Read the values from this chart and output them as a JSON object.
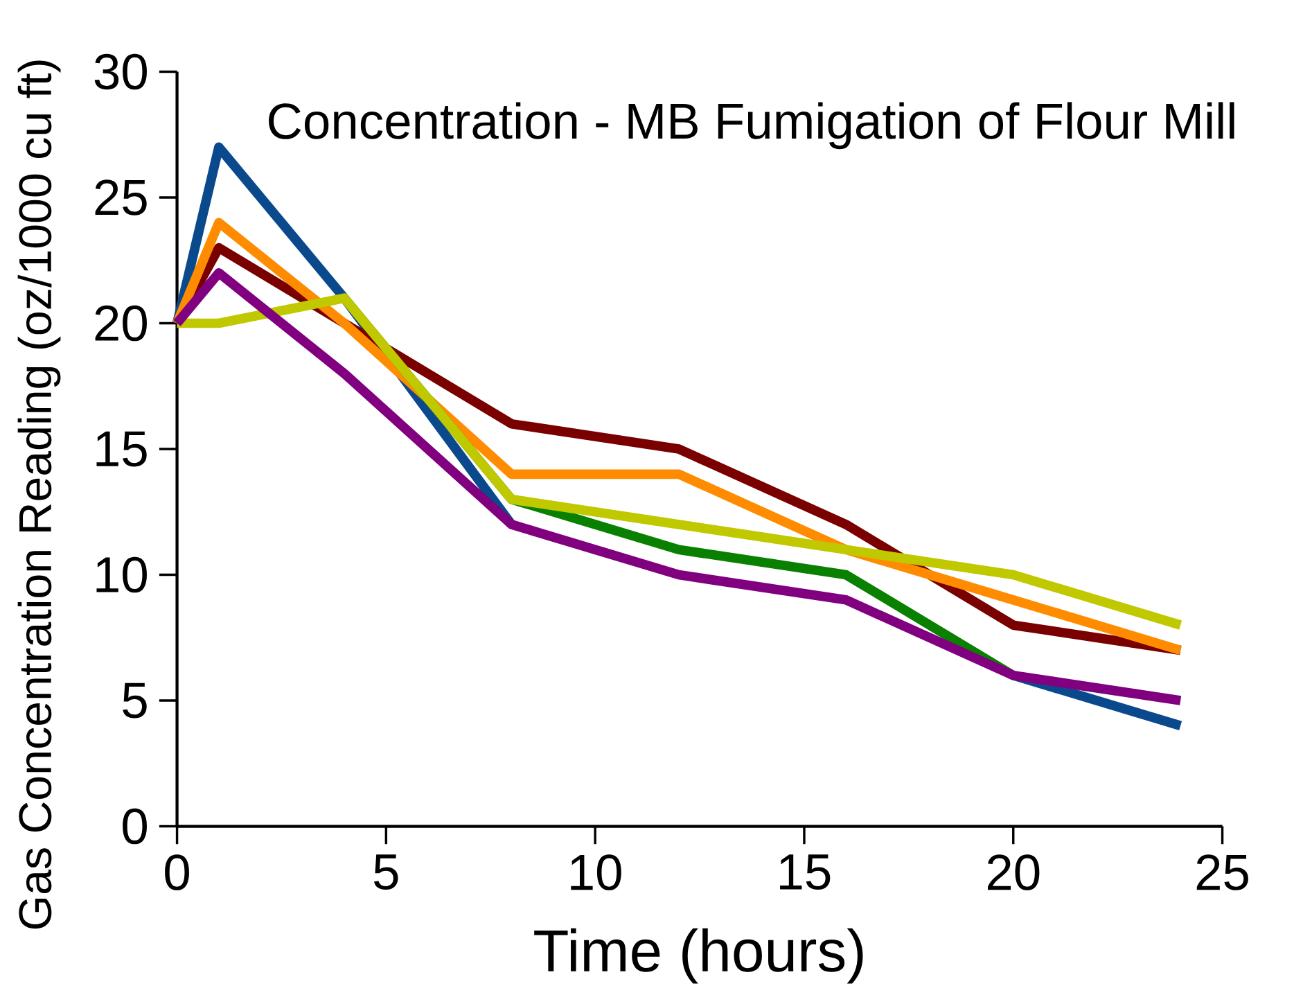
{
  "chart_data": {
    "type": "line",
    "title": "Concentration - MB Fumigation of Flour Mill",
    "xlabel": "Time (hours)",
    "ylabel": "Gas Concentration Reading (oz/1000 cu ft)",
    "x": [
      0,
      1,
      4,
      8,
      12,
      16,
      20,
      24
    ],
    "series": [
      {
        "color": "#0a4a8c",
        "values": [
          20,
          27,
          21,
          12,
          null,
          null,
          6,
          4
        ]
      },
      {
        "color": "#7a0000",
        "values": [
          20,
          23,
          20,
          16,
          15,
          12,
          8,
          7
        ]
      },
      {
        "color": "#ff8c00",
        "values": [
          20,
          24,
          20,
          14,
          14,
          11,
          9,
          7
        ]
      },
      {
        "color": "#0a8000",
        "values": [
          null,
          null,
          21,
          13,
          11,
          10,
          6,
          null
        ]
      },
      {
        "color": "#c0c800",
        "values": [
          20,
          20,
          21,
          13,
          12,
          11,
          10,
          8
        ]
      },
      {
        "color": "#800080",
        "values": [
          20,
          22,
          18,
          12,
          10,
          9,
          6,
          5
        ]
      }
    ],
    "xlim": [
      0,
      25
    ],
    "ylim": [
      0,
      30
    ],
    "xticks": [
      0,
      5,
      10,
      15,
      20,
      25
    ],
    "yticks": [
      0,
      5,
      10,
      15,
      20,
      25,
      30
    ],
    "grid": false,
    "marker": "none",
    "line_style": "solid"
  }
}
